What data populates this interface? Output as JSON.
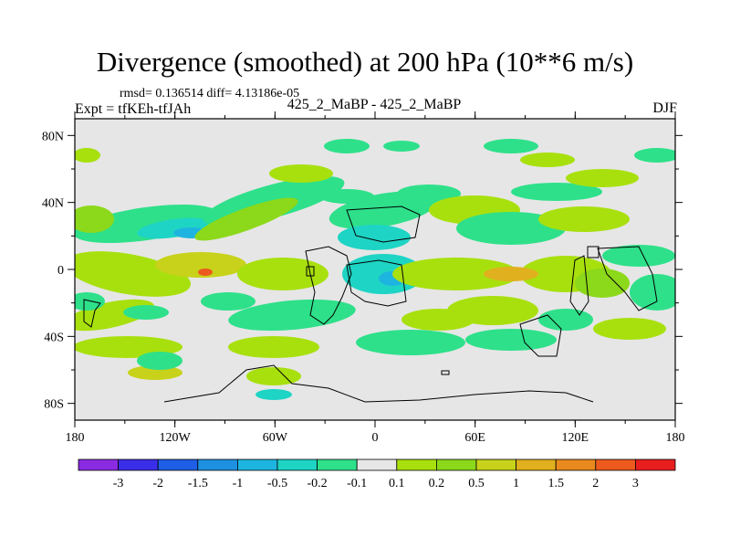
{
  "chart_data": {
    "type": "heatmap",
    "title": "Divergence (smoothed) at 200 hPa (10**6 m/s)",
    "stats": "rmsd= 0.136514 diff= 4.13186e-05",
    "expt": "Expt = tfKEh-tfJAh",
    "subtitle": "425_2_MaBP - 425_2_MaBP",
    "season": "DJF",
    "xticks": [
      "180",
      "120W",
      "60W",
      "0",
      "60E",
      "120E",
      "180"
    ],
    "yticks": [
      "80N",
      "40N",
      "0",
      "40S",
      "80S"
    ],
    "xlim": [
      -180,
      180
    ],
    "ylim": [
      -90,
      90
    ],
    "colorbar": {
      "labels": [
        "-3",
        "-2",
        "-1.5",
        "-1",
        "-0.5",
        "-0.2",
        "-0.1",
        "0.1",
        "0.2",
        "0.5",
        "1",
        "1.5",
        "2",
        "3"
      ],
      "colors": [
        "#8a2be2",
        "#3b2ee8",
        "#1f5fe6",
        "#1e90e0",
        "#1eb4e0",
        "#1ed4c4",
        "#2ee08a",
        "#e6e6e6",
        "#a8e00e",
        "#8cd81a",
        "#c8d21a",
        "#e0b01e",
        "#e88a1e",
        "#ec5a1e",
        "#e81e1e"
      ]
    },
    "background_color": "#e6e6e6"
  }
}
